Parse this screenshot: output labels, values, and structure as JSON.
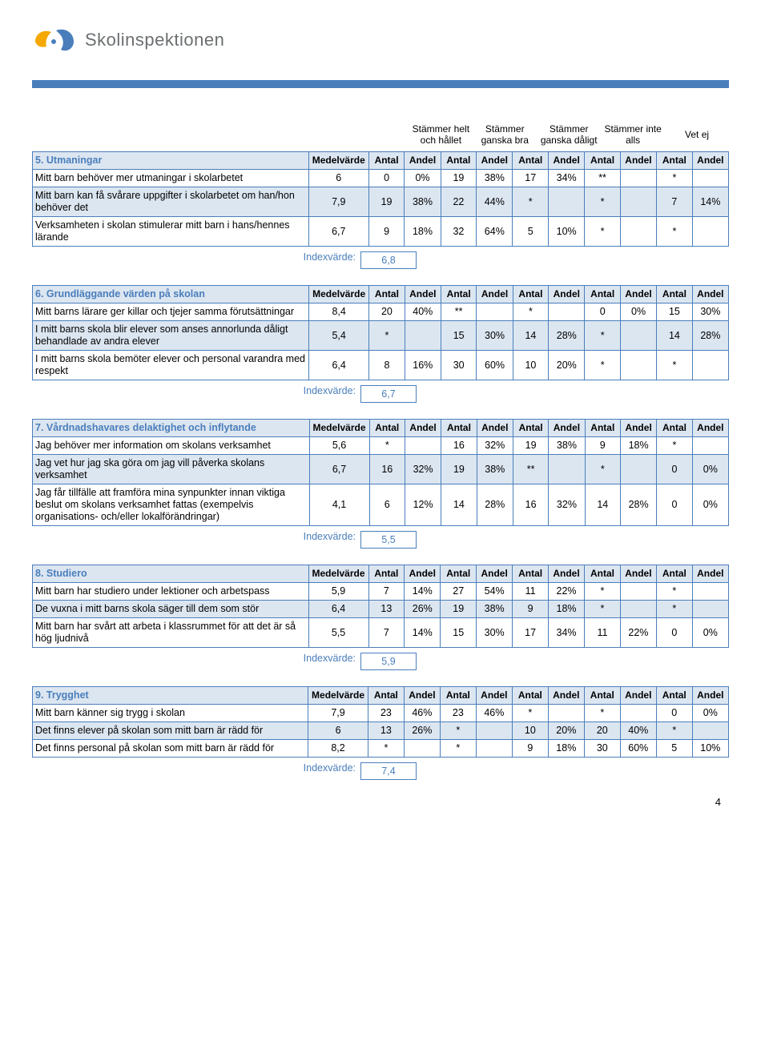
{
  "logo_text": "Skolinspektionen",
  "page_number": "4",
  "top_headers": [
    "Stämmer helt och hållet",
    "Stämmer ganska bra",
    "Stämmer ganska dåligt",
    "Stämmer inte alls",
    "Vet ej"
  ],
  "col_sub": [
    "Medelvärde",
    "Antal",
    "Andel",
    "Antal",
    "Andel",
    "Antal",
    "Andel",
    "Antal",
    "Andel",
    "Antal",
    "Andel"
  ],
  "index_label": "Indexvärde:",
  "sections": [
    {
      "title": "5. Utmaningar",
      "rows": [
        {
          "label": "Mitt barn behöver mer utmaningar i skolarbetet",
          "cells": [
            "6",
            "0",
            "0%",
            "19",
            "38%",
            "17",
            "34%",
            "**",
            "",
            "*",
            ""
          ]
        },
        {
          "label": "Mitt barn kan få svårare uppgifter i skolarbetet om han/hon behöver det",
          "cells": [
            "7,9",
            "19",
            "38%",
            "22",
            "44%",
            "*",
            "",
            "*",
            "",
            "7",
            "14%"
          ]
        },
        {
          "label": "Verksamheten i skolan stimulerar mitt barn i hans/hennes lärande",
          "cells": [
            "6,7",
            "9",
            "18%",
            "32",
            "64%",
            "5",
            "10%",
            "*",
            "",
            "*",
            ""
          ]
        }
      ],
      "index": "6,8"
    },
    {
      "title": "6. Grundläggande värden på skolan",
      "rows": [
        {
          "label": "Mitt barns lärare ger killar och tjejer samma förutsättningar",
          "cells": [
            "8,4",
            "20",
            "40%",
            "**",
            "",
            "*",
            "",
            "0",
            "0%",
            "15",
            "30%"
          ]
        },
        {
          "label": "I mitt barns skola blir elever som anses annorlunda dåligt behandlade av andra elever",
          "cells": [
            "5,4",
            "*",
            "",
            "15",
            "30%",
            "14",
            "28%",
            "*",
            "",
            "14",
            "28%"
          ]
        },
        {
          "label": "I mitt barns skola bemöter elever och personal varandra med respekt",
          "cells": [
            "6,4",
            "8",
            "16%",
            "30",
            "60%",
            "10",
            "20%",
            "*",
            "",
            "*",
            ""
          ]
        }
      ],
      "index": "6,7"
    },
    {
      "title": "7. Vårdnadshavares delaktighet och inflytande",
      "rows": [
        {
          "label": "Jag behöver mer information om skolans verksamhet",
          "cells": [
            "5,6",
            "*",
            "",
            "16",
            "32%",
            "19",
            "38%",
            "9",
            "18%",
            "*",
            ""
          ]
        },
        {
          "label": "Jag vet hur jag ska göra om jag vill påverka skolans verksamhet",
          "cells": [
            "6,7",
            "16",
            "32%",
            "19",
            "38%",
            "**",
            "",
            "*",
            "",
            "0",
            "0%"
          ]
        },
        {
          "label": "Jag får tillfälle att framföra mina synpunkter innan viktiga beslut om skolans verksamhet fattas (exempelvis organisations- och/eller lokalförändringar)",
          "cells": [
            "4,1",
            "6",
            "12%",
            "14",
            "28%",
            "16",
            "32%",
            "14",
            "28%",
            "0",
            "0%"
          ]
        }
      ],
      "index": "5,5"
    },
    {
      "title": "8. Studiero",
      "rows": [
        {
          "label": "Mitt barn har studiero under lektioner och arbetspass",
          "cells": [
            "5,9",
            "7",
            "14%",
            "27",
            "54%",
            "11",
            "22%",
            "*",
            "",
            "*",
            ""
          ]
        },
        {
          "label": "De vuxna i mitt barns skola säger till dem som stör",
          "cells": [
            "6,4",
            "13",
            "26%",
            "19",
            "38%",
            "9",
            "18%",
            "*",
            "",
            "*",
            ""
          ]
        },
        {
          "label": "Mitt barn har svårt att arbeta i klassrummet för att det är så hög ljudnivå",
          "cells": [
            "5,5",
            "7",
            "14%",
            "15",
            "30%",
            "17",
            "34%",
            "11",
            "22%",
            "0",
            "0%"
          ]
        }
      ],
      "index": "5,9"
    },
    {
      "title": "9. Trygghet",
      "rows": [
        {
          "label": "Mitt barn känner sig trygg i skolan",
          "cells": [
            "7,9",
            "23",
            "46%",
            "23",
            "46%",
            "*",
            "",
            "*",
            "",
            "0",
            "0%"
          ]
        },
        {
          "label": "Det finns elever på skolan som mitt barn är rädd för",
          "cells": [
            "6",
            "13",
            "26%",
            "*",
            "",
            "10",
            "20%",
            "20",
            "40%",
            "*",
            ""
          ]
        },
        {
          "label": "Det finns personal på skolan som mitt barn är rädd för",
          "cells": [
            "8,2",
            "*",
            "",
            "*",
            "",
            "9",
            "18%",
            "30",
            "60%",
            "5",
            "10%"
          ]
        }
      ],
      "index": "7,4"
    }
  ]
}
